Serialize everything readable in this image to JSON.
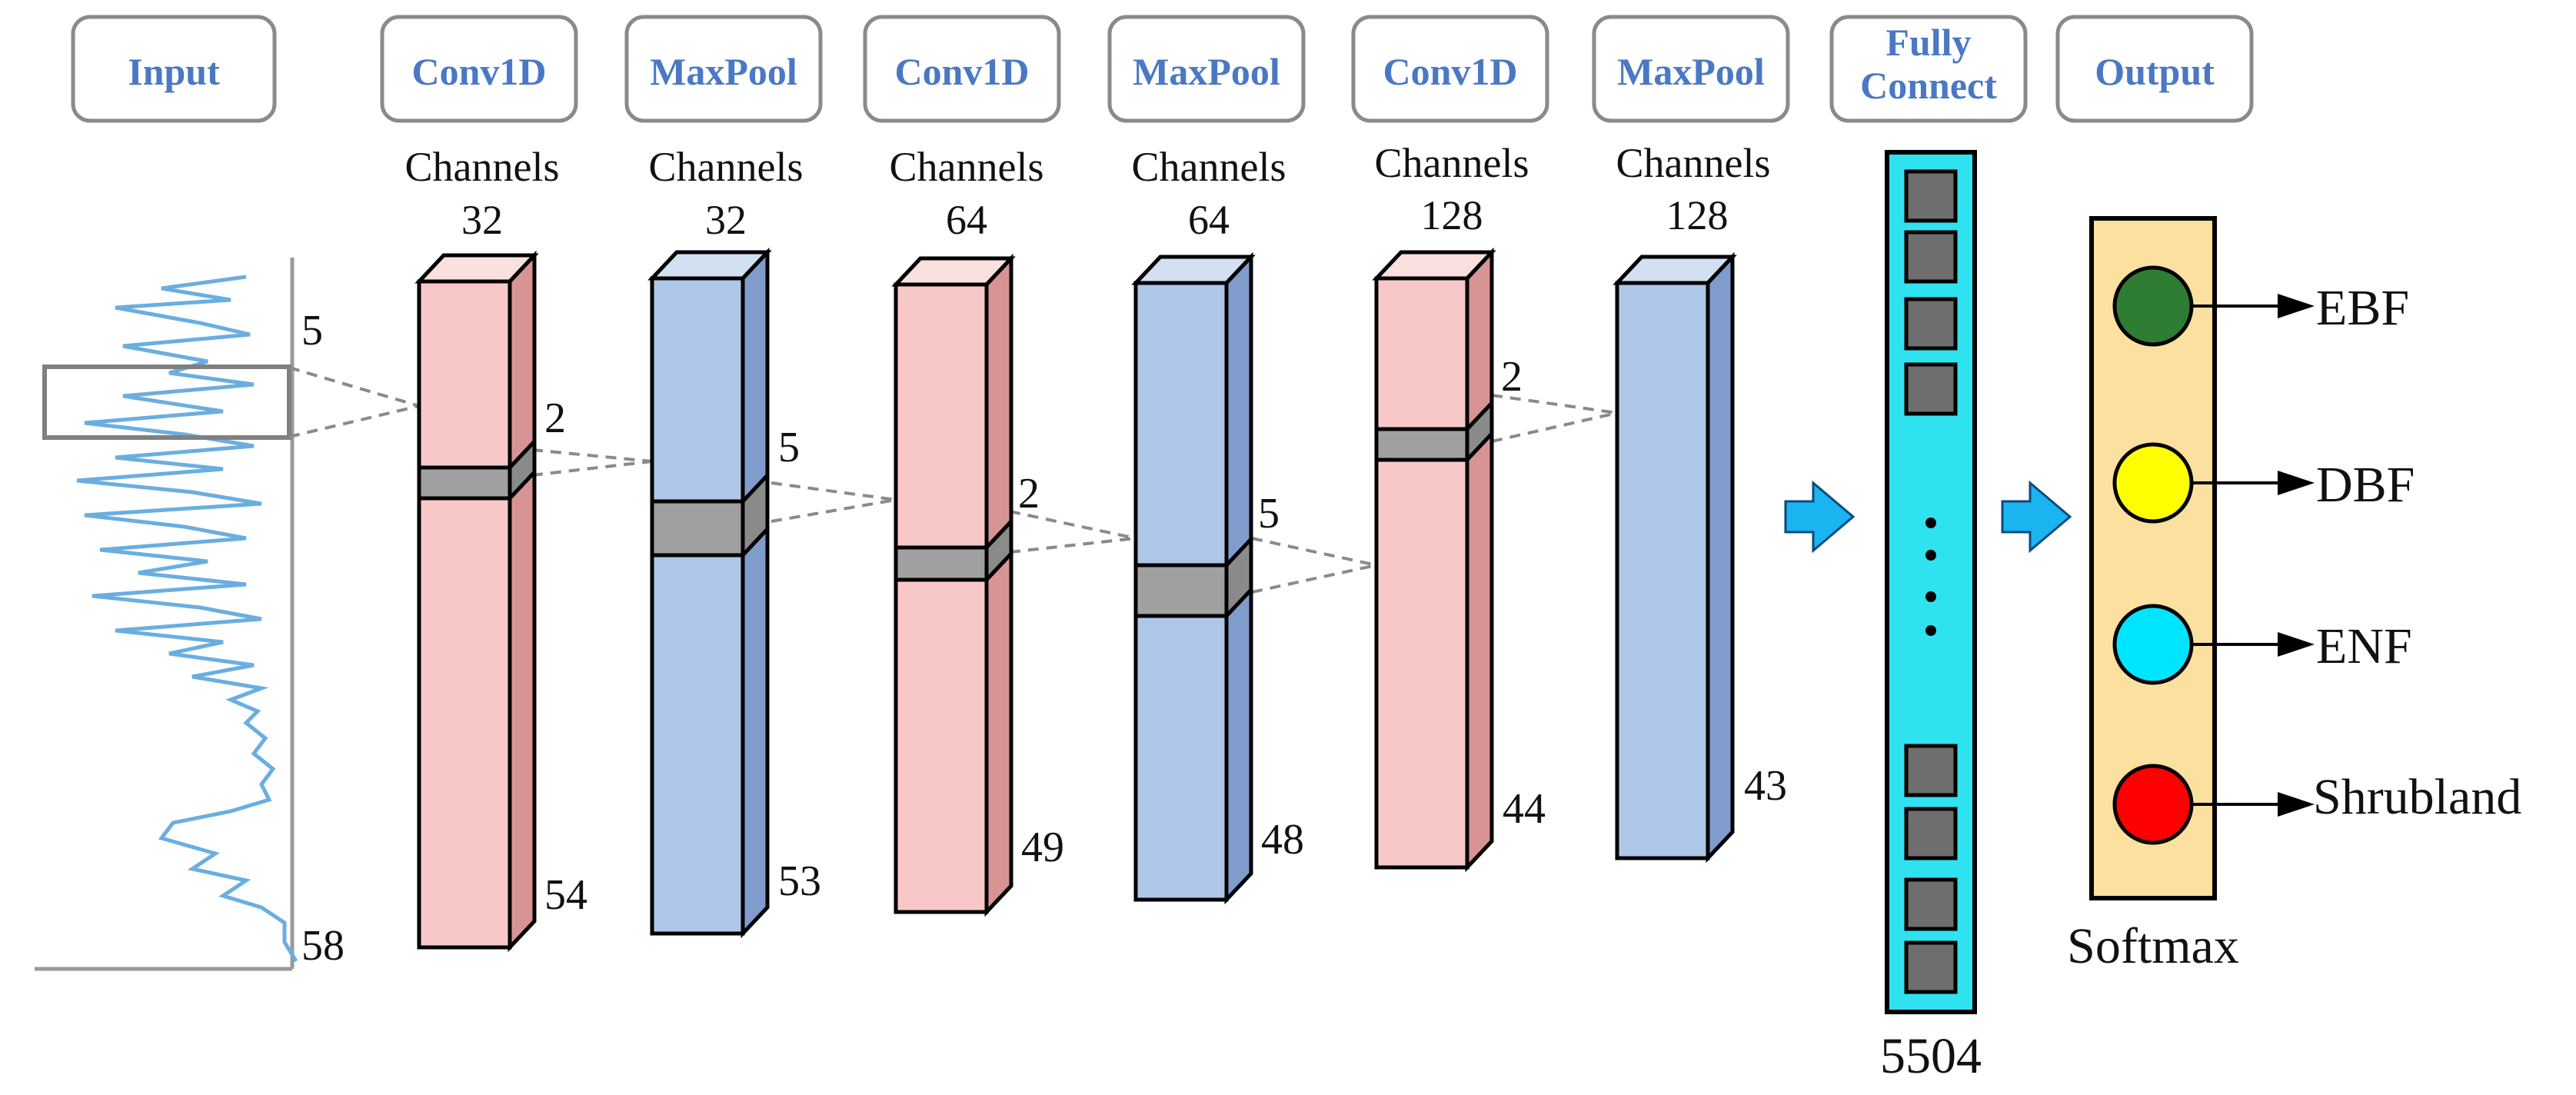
{
  "headers": [
    "Input",
    "Conv1D",
    "MaxPool",
    "Conv1D",
    "MaxPool",
    "Conv1D",
    "MaxPool",
    "Fully Connect",
    "Output"
  ],
  "input": {
    "top_label": "5",
    "bottom_label": "58"
  },
  "layers": [
    {
      "type": "conv",
      "channels_label": "Channels",
      "channels": "32",
      "length": "54",
      "kernel": "2"
    },
    {
      "type": "pool",
      "channels_label": "Channels",
      "channels": "32",
      "length": "53",
      "kernel": "5"
    },
    {
      "type": "conv",
      "channels_label": "Channels",
      "channels": "64",
      "length": "49",
      "kernel": "2"
    },
    {
      "type": "pool",
      "channels_label": "Channels",
      "channels": "64",
      "length": "48",
      "kernel": "5"
    },
    {
      "type": "conv",
      "channels_label": "Channels",
      "channels": "128",
      "length": "44",
      "kernel": "2"
    },
    {
      "type": "pool",
      "channels_label": "Channels",
      "channels": "128",
      "length": "43",
      "kernel": ""
    }
  ],
  "fully_connect": {
    "size": "5504"
  },
  "output": {
    "activation": "Softmax",
    "classes": [
      {
        "name": "EBF",
        "color": "#2e7d32"
      },
      {
        "name": "DBF",
        "color": "#ffff00"
      },
      {
        "name": "ENF",
        "color": "#00e5ff"
      },
      {
        "name": "Shrubland",
        "color": "#ff0000"
      }
    ]
  },
  "colors": {
    "conv_front": "#f8c8c8",
    "conv_side": "#d89494",
    "conv_top": "#fbe0e0",
    "pool_front": "#aec6e8",
    "pool_side": "#7f9ccc",
    "pool_top": "#d2e0f2",
    "header_text": "#4a78c4",
    "fc_fill": "#2fe2f0",
    "output_fill": "#fce0a0",
    "arrow": "#1ab4f0",
    "signal": "#6aaee0"
  }
}
